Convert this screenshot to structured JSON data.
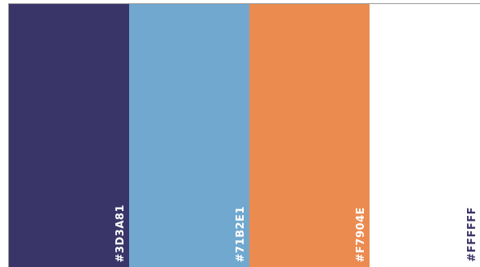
{
  "palette": {
    "swatches": [
      {
        "label": "#3D3A81",
        "color": "#3a3568",
        "text_color": "#ffffff"
      },
      {
        "label": "#71B2E1",
        "color": "#70a8cf",
        "text_color": "#ffffff"
      },
      {
        "label": "#F7904E",
        "color": "#eb8b50",
        "text_color": "#ffffff"
      },
      {
        "label": "#FFFFFF",
        "color": "#ffffff",
        "text_color": "#3a3568"
      }
    ]
  }
}
